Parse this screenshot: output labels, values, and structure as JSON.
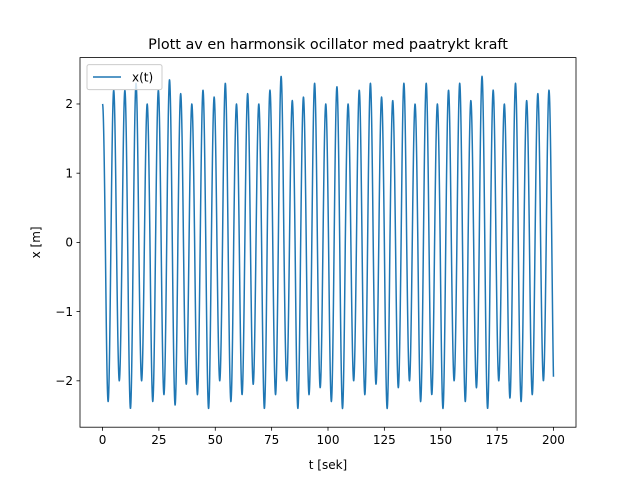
{
  "chart_data": {
    "type": "line",
    "title": "Plott av en harmonsik ocillator med paatrykt kraft",
    "xlabel": "t [sek]",
    "ylabel": "x [m]",
    "xlim": [
      -10,
      210
    ],
    "ylim": [
      -2.67,
      2.67
    ],
    "xticks": [
      0,
      25,
      50,
      75,
      100,
      125,
      150,
      175,
      200
    ],
    "yticks": [
      -2,
      -1,
      0,
      1,
      2
    ],
    "grid": false,
    "legend": {
      "position": "top-left"
    },
    "series": [
      {
        "name": "x(t)",
        "color": "#1f77b4",
        "x_range": [
          0,
          200
        ],
        "cycles": 40.4,
        "start_value": 2.0,
        "peaks": [
          2.0,
          2.2,
          2.2,
          2.3,
          2.0,
          2.2,
          2.35,
          2.15,
          2.0,
          2.2,
          2.1,
          2.3,
          2.0,
          2.15,
          2.0,
          2.2,
          2.4,
          2.05,
          2.1,
          2.3,
          2.0,
          2.25,
          2.0,
          2.2,
          2.3,
          2.1,
          2.05,
          2.3,
          2.0,
          2.3,
          2.0,
          2.2,
          2.3,
          2.05,
          2.4,
          2.2,
          2.0,
          2.3,
          2.05,
          2.15,
          2.2
        ],
        "troughs": [
          -2.3,
          -2.0,
          -2.4,
          -2.0,
          -2.3,
          -2.2,
          -2.35,
          -2.05,
          -2.2,
          -2.4,
          -2.0,
          -2.3,
          -2.2,
          -2.05,
          -2.4,
          -2.2,
          -2.0,
          -2.4,
          -2.2,
          -2.1,
          -2.3,
          -2.4,
          -2.0,
          -2.2,
          -2.05,
          -2.4,
          -2.1,
          -2.0,
          -2.3,
          -2.2,
          -2.4,
          -2.0,
          -2.3,
          -2.1,
          -2.4,
          -2.0,
          -2.25,
          -2.3,
          -2.2,
          -2.0,
          -2.4
        ]
      }
    ]
  }
}
